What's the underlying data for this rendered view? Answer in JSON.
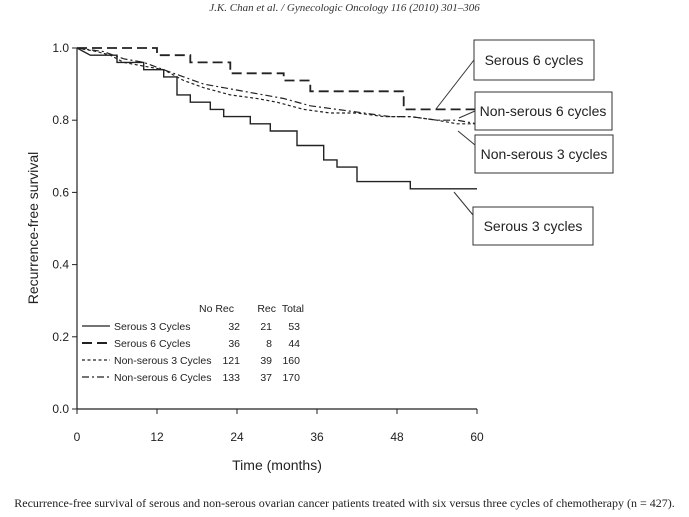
{
  "header": "J.K. Chan et al. / Gynecologic Oncology 116 (2010) 301–306",
  "caption": "Recurrence-free survival of serous and non-serous ovarian cancer patients treated with six versus three cycles of chemotherapy (n = 427).",
  "chart_data": {
    "type": "line",
    "xlabel": "Time (months)",
    "ylabel": "Recurrence-free survival",
    "xlim": [
      0,
      60
    ],
    "ylim": [
      0,
      1.0
    ],
    "xticks": [
      0,
      12,
      24,
      36,
      48,
      60
    ],
    "yticks": [
      "0.0",
      "0.2",
      "0.4",
      "0.6",
      "0.8",
      "1.0"
    ],
    "grid": false,
    "series": [
      {
        "name": "Serous 3 Cycles",
        "style": "solid",
        "points": [
          [
            0,
            1.0
          ],
          [
            2,
            0.98
          ],
          [
            6,
            0.98
          ],
          [
            6,
            0.96
          ],
          [
            10,
            0.96
          ],
          [
            10,
            0.94
          ],
          [
            13,
            0.94
          ],
          [
            13,
            0.92
          ],
          [
            15,
            0.92
          ],
          [
            15,
            0.87
          ],
          [
            17,
            0.87
          ],
          [
            17,
            0.85
          ],
          [
            20,
            0.85
          ],
          [
            20,
            0.83
          ],
          [
            22,
            0.83
          ],
          [
            22,
            0.81
          ],
          [
            26,
            0.81
          ],
          [
            26,
            0.79
          ],
          [
            29,
            0.79
          ],
          [
            29,
            0.77
          ],
          [
            33,
            0.77
          ],
          [
            33,
            0.73
          ],
          [
            37,
            0.73
          ],
          [
            37,
            0.69
          ],
          [
            39,
            0.69
          ],
          [
            39,
            0.67
          ],
          [
            42,
            0.67
          ],
          [
            42,
            0.63
          ],
          [
            50,
            0.63
          ],
          [
            50,
            0.61
          ],
          [
            60,
            0.61
          ]
        ]
      },
      {
        "name": "Serous 6 Cycles",
        "style": "long-dash",
        "points": [
          [
            0,
            1.0
          ],
          [
            12,
            1.0
          ],
          [
            12,
            0.98
          ],
          [
            17,
            0.98
          ],
          [
            17,
            0.96
          ],
          [
            23,
            0.96
          ],
          [
            23,
            0.93
          ],
          [
            31,
            0.93
          ],
          [
            31,
            0.91
          ],
          [
            35,
            0.91
          ],
          [
            35,
            0.88
          ],
          [
            49,
            0.88
          ],
          [
            49,
            0.83
          ],
          [
            60,
            0.83
          ]
        ]
      },
      {
        "name": "Non-serous 3 Cycles",
        "style": "short-dash",
        "points": [
          [
            0,
            1.0
          ],
          [
            3,
            0.99
          ],
          [
            5,
            0.98
          ],
          [
            7,
            0.96
          ],
          [
            10,
            0.95
          ],
          [
            13,
            0.94
          ],
          [
            16,
            0.91
          ],
          [
            19,
            0.89
          ],
          [
            23,
            0.87
          ],
          [
            27,
            0.86
          ],
          [
            30,
            0.85
          ],
          [
            34,
            0.83
          ],
          [
            38,
            0.82
          ],
          [
            42,
            0.82
          ],
          [
            46,
            0.81
          ],
          [
            50,
            0.81
          ],
          [
            54,
            0.8
          ],
          [
            57,
            0.79
          ],
          [
            60,
            0.79
          ]
        ]
      },
      {
        "name": "Non-serous 6 Cycles",
        "style": "dash-dot",
        "points": [
          [
            0,
            1.0
          ],
          [
            4,
            0.99
          ],
          [
            7,
            0.97
          ],
          [
            10,
            0.96
          ],
          [
            13,
            0.94
          ],
          [
            16,
            0.92
          ],
          [
            19,
            0.9
          ],
          [
            22,
            0.89
          ],
          [
            25,
            0.88
          ],
          [
            28,
            0.87
          ],
          [
            31,
            0.86
          ],
          [
            35,
            0.84
          ],
          [
            39,
            0.83
          ],
          [
            43,
            0.82
          ],
          [
            47,
            0.81
          ],
          [
            50,
            0.81
          ],
          [
            54,
            0.8
          ],
          [
            57,
            0.8
          ],
          [
            60,
            0.79
          ]
        ]
      }
    ],
    "callouts": [
      "Serous 6 cycles",
      "Non-serous 6 cycles",
      "Non-serous 3 cycles",
      "Serous 3 cycles"
    ],
    "legend_table": {
      "columns": [
        "No Rec",
        "Rec",
        "Total"
      ],
      "rows": [
        {
          "label": "Serous 3 Cycles",
          "values": [
            "32",
            "21",
            "53"
          ]
        },
        {
          "label": "Serous 6 Cycles",
          "values": [
            "36",
            "8",
            "44"
          ]
        },
        {
          "label": "Non-serous 3 Cycles",
          "values": [
            "121",
            "39",
            "160"
          ]
        },
        {
          "label": "Non-serous 6 Cycles",
          "values": [
            "133",
            "37",
            "170"
          ]
        }
      ]
    }
  }
}
